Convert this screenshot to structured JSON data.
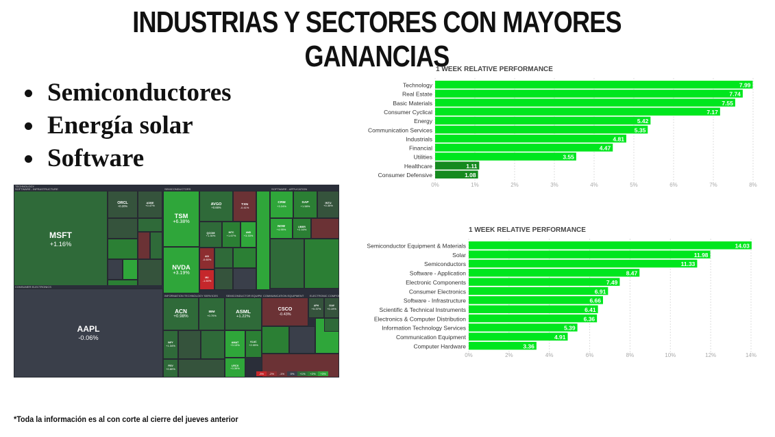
{
  "title": "INDUSTRIAS Y SECTORES CON MAYORES GANANCIAS",
  "bullets": [
    "Semiconductores",
    "Energía solar",
    "Software"
  ],
  "footnote": "*Toda la información es al con corte al cierre del jueves anterior",
  "colors": {
    "bar_bright": "#00e61e",
    "bar_dark": "#158a1f",
    "grid": "#dddddd"
  },
  "chart_data": [
    {
      "type": "bar",
      "orientation": "horizontal",
      "title": "1 WEEK RELATIVE PERFORMANCE",
      "categories": [
        "Technology",
        "Real Estate",
        "Basic Materials",
        "Consumer Cyclical",
        "Energy",
        "Communication Services",
        "Industrials",
        "Financial",
        "Utilities",
        "Healthcare",
        "Consumer Defensive"
      ],
      "values": [
        7.99,
        7.74,
        7.55,
        7.17,
        5.42,
        5.35,
        4.81,
        4.47,
        3.55,
        1.11,
        1.08
      ],
      "value_labels": [
        "7.99",
        "7.74",
        "7.55",
        "7.17",
        "5.42",
        "5.35",
        "4.81",
        "4.47",
        "3.55",
        "1.11",
        "1.08"
      ],
      "xlim": [
        0,
        8
      ],
      "ticks": [
        0,
        1,
        2,
        3,
        4,
        5,
        6,
        7,
        8
      ],
      "tick_labels": [
        "0%",
        "1%",
        "2%",
        "3%",
        "4%",
        "5%",
        "6%",
        "7%",
        "8%"
      ],
      "grid": true
    },
    {
      "type": "bar",
      "orientation": "horizontal",
      "title": "1 WEEK RELATIVE PERFORMANCE",
      "categories": [
        "Semiconductor Equipment & Materials",
        "Solar",
        "Semiconductors",
        "Software - Application",
        "Electronic Components",
        "Consumer Electronics",
        "Software - Infrastructure",
        "Scientific & Technical Instruments",
        "Electronics & Computer Distribution",
        "Information Technology Services",
        "Communication Equipment",
        "Computer Hardware"
      ],
      "values": [
        14.03,
        11.98,
        11.33,
        8.47,
        7.49,
        6.91,
        6.66,
        6.41,
        6.36,
        5.39,
        4.91,
        3.36
      ],
      "value_labels": [
        "14.03",
        "11.98",
        "11.33",
        "8.47",
        "7.49",
        "6.91",
        "6.66",
        "6.41",
        "6.36",
        "5.39",
        "4.91",
        "3.36"
      ],
      "xlim": [
        0,
        14
      ],
      "ticks": [
        0,
        2,
        4,
        6,
        8,
        10,
        12,
        14
      ],
      "tick_labels": [
        "0%",
        "2%",
        "4%",
        "6%",
        "8%",
        "10%",
        "12%",
        "14%"
      ],
      "grid": true
    },
    {
      "type": "heatmap",
      "sectors": [
        "TECHNOLOGY",
        "SOFTWARE - INFRASTRUCTURE",
        "SEMICONDUCTORS",
        "SOFTWARE - APPLICATION",
        "CONSUMER ELECTRONICS",
        "INFORMATION TECHNOLOGY SERVICES",
        "SEMICONDUCTOR EQUIPMENT",
        "COMMUNICATION EQUIPMENT",
        "ELECTRONIC COMPONENTS"
      ],
      "tiles": [
        {
          "ticker": "MSFT",
          "change": "+1.16%",
          "value": 1.16
        },
        {
          "ticker": "ORCL",
          "change": "+0.20%",
          "value": 0.2
        },
        {
          "ticker": "ADBE",
          "change": "+0.47%",
          "value": 0.47
        },
        {
          "ticker": "AAPL",
          "change": "-0.06%",
          "value": -0.06
        },
        {
          "ticker": "TSM",
          "change": "+6.38%",
          "value": 6.38
        },
        {
          "ticker": "NVDA",
          "change": "+3.19%",
          "value": 3.19
        },
        {
          "ticker": "AVGO",
          "change": "+0.66%",
          "value": 0.66
        },
        {
          "ticker": "TXN",
          "change": "-0.41%",
          "value": -0.41
        },
        {
          "ticker": "QCOM",
          "change": "+1.30%",
          "value": 1.3
        },
        {
          "ticker": "INTC",
          "change": "+1.67%",
          "value": 1.67
        },
        {
          "ticker": "AMD",
          "change": "+3.33%",
          "value": 3.33
        },
        {
          "ticker": "ADI",
          "change": "-0.60%",
          "value": -0.6
        },
        {
          "ticker": "MU",
          "change": "-1.50%",
          "value": -1.5
        },
        {
          "ticker": "CRM",
          "change": "+3.24%",
          "value": 3.24
        },
        {
          "ticker": "SAP",
          "change": "+1.58%",
          "value": 1.58
        },
        {
          "ticker": "INTU",
          "change": "+0.35%",
          "value": 0.35
        },
        {
          "ticker": "NOW",
          "change": "+4.95%",
          "value": 4.95
        },
        {
          "ticker": "UBER",
          "change": "+2.16%",
          "value": 2.16
        },
        {
          "ticker": "ACN",
          "change": "+0.98%",
          "value": 0.98
        },
        {
          "ticker": "IBM",
          "change": "+0.70%",
          "value": 0.7
        },
        {
          "ticker": "INFY",
          "change": "+1.34%",
          "value": 1.34
        },
        {
          "ticker": "FISV",
          "change": "+0.80%",
          "value": 0.8
        },
        {
          "ticker": "ASML",
          "change": "+1.22%",
          "value": 1.22
        },
        {
          "ticker": "AMAT",
          "change": "+3.13%",
          "value": 3.13
        },
        {
          "ticker": "LRCX",
          "change": "+3.39%",
          "value": 3.39
        },
        {
          "ticker": "KLAC",
          "change": "+2.05%",
          "value": 2.05
        },
        {
          "ticker": "CSCO",
          "change": "-0.43%",
          "value": -0.43
        },
        {
          "ticker": "APH",
          "change": "+0.37%",
          "value": 0.37
        },
        {
          "ticker": "GLW",
          "change": "+0.19%",
          "value": 0.19
        }
      ],
      "legend": [
        "-3%",
        "-2%",
        "-1%",
        "0%",
        "+1%",
        "+2%",
        "+3%"
      ]
    }
  ]
}
